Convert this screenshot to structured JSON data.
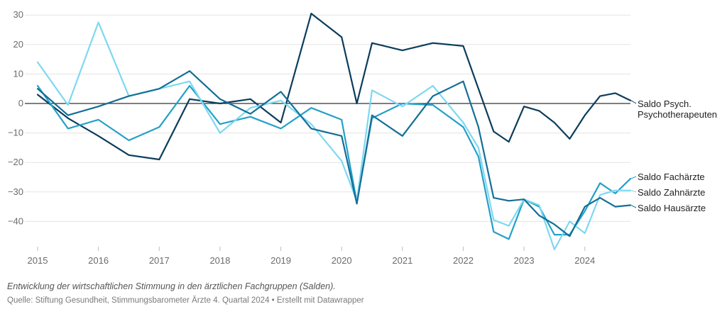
{
  "chart_data": {
    "type": "line",
    "x_ticks": [
      "2015",
      "2016",
      "2017",
      "2018",
      "2019",
      "2020",
      "2021",
      "2022",
      "2023",
      "2024"
    ],
    "x_range": [
      2015.0,
      2024.75
    ],
    "y_ticks": [
      30,
      20,
      10,
      0,
      -10,
      -20,
      -30,
      -40
    ],
    "y_tick_labels": [
      "30",
      "20",
      "10",
      "0",
      "−10",
      "−20",
      "−30",
      "−40"
    ],
    "ylim": [
      -50,
      30
    ],
    "grid": true,
    "series": [
      {
        "name": "Saldo Psych. Psychotherapeuten",
        "label_lines": [
          "Saldo Psych.",
          "Psychotherapeuten"
        ],
        "color": "#0b3d5c",
        "points": [
          [
            2015.0,
            3
          ],
          [
            2015.5,
            -5
          ],
          [
            2016.0,
            -11
          ],
          [
            2016.5,
            -17.5
          ],
          [
            2017.0,
            -19
          ],
          [
            2017.5,
            1.5
          ],
          [
            2018.0,
            0
          ],
          [
            2018.5,
            1.5
          ],
          [
            2019.0,
            -6.5
          ],
          [
            2019.5,
            30.5
          ],
          [
            2020.0,
            22.5
          ],
          [
            2020.25,
            0
          ],
          [
            2020.5,
            20.5
          ],
          [
            2021.0,
            18
          ],
          [
            2021.5,
            20.5
          ],
          [
            2022.0,
            19.5
          ],
          [
            2022.25,
            5
          ],
          [
            2022.5,
            -9.5
          ],
          [
            2022.75,
            -13
          ],
          [
            2023.0,
            -1
          ],
          [
            2023.25,
            -2.5
          ],
          [
            2023.5,
            -6.5
          ],
          [
            2023.75,
            -12
          ],
          [
            2024.0,
            -4
          ],
          [
            2024.25,
            2.5
          ],
          [
            2024.5,
            3.5
          ],
          [
            2024.75,
            1
          ]
        ]
      },
      {
        "name": "Saldo Fachärzte",
        "label_lines": [
          "Saldo Fachärzte"
        ],
        "color": "#24a0c8",
        "points": [
          [
            2015.0,
            6
          ],
          [
            2015.5,
            -8.5
          ],
          [
            2016.0,
            -5.5
          ],
          [
            2016.5,
            -12.5
          ],
          [
            2017.0,
            -8
          ],
          [
            2017.5,
            6
          ],
          [
            2018.0,
            -7
          ],
          [
            2018.5,
            -4.5
          ],
          [
            2019.0,
            -8.5
          ],
          [
            2019.5,
            -1.5
          ],
          [
            2020.0,
            -5.5
          ],
          [
            2020.25,
            -33.5
          ],
          [
            2020.5,
            -5
          ],
          [
            2021.0,
            0
          ],
          [
            2021.5,
            -0.5
          ],
          [
            2022.0,
            -8
          ],
          [
            2022.25,
            -18
          ],
          [
            2022.5,
            -43.5
          ],
          [
            2022.75,
            -46
          ],
          [
            2023.0,
            -32.5
          ],
          [
            2023.25,
            -35
          ],
          [
            2023.5,
            -44.5
          ],
          [
            2023.75,
            -44.5
          ],
          [
            2024.0,
            -36.5
          ],
          [
            2024.25,
            -27
          ],
          [
            2024.5,
            -30.5
          ],
          [
            2024.75,
            -25.5
          ]
        ]
      },
      {
        "name": "Saldo Zahnärzte",
        "label_lines": [
          "Saldo Zahnärzte"
        ],
        "color": "#7dd8f2",
        "points": [
          [
            2015.0,
            14
          ],
          [
            2015.5,
            -0.5
          ],
          [
            2016.0,
            27.5
          ],
          [
            2016.5,
            2.5
          ],
          [
            2017.0,
            5
          ],
          [
            2017.5,
            7.5
          ],
          [
            2018.0,
            -10
          ],
          [
            2018.5,
            -1.5
          ],
          [
            2019.0,
            1
          ],
          [
            2019.5,
            -7
          ],
          [
            2020.0,
            -19.5
          ],
          [
            2020.25,
            -33
          ],
          [
            2020.5,
            4.5
          ],
          [
            2021.0,
            -1
          ],
          [
            2021.5,
            6
          ],
          [
            2022.0,
            -6.5
          ],
          [
            2022.25,
            -15
          ],
          [
            2022.5,
            -39.5
          ],
          [
            2022.75,
            -41.5
          ],
          [
            2023.0,
            -32.5
          ],
          [
            2023.25,
            -34.5
          ],
          [
            2023.5,
            -49.5
          ],
          [
            2023.75,
            -40
          ],
          [
            2024.0,
            -44
          ],
          [
            2024.25,
            -31
          ],
          [
            2024.5,
            -29.5
          ],
          [
            2024.75,
            -29.5
          ]
        ]
      },
      {
        "name": "Saldo Hausärzte",
        "label_lines": [
          "Saldo Hausärzte"
        ],
        "color": "#136e96",
        "points": [
          [
            2015.0,
            5
          ],
          [
            2015.5,
            -4
          ],
          [
            2016.0,
            -1
          ],
          [
            2016.5,
            2.5
          ],
          [
            2017.0,
            5
          ],
          [
            2017.5,
            11
          ],
          [
            2018.0,
            1.5
          ],
          [
            2018.5,
            -3.5
          ],
          [
            2019.0,
            4
          ],
          [
            2019.5,
            -8.5
          ],
          [
            2020.0,
            -11
          ],
          [
            2020.25,
            -34
          ],
          [
            2020.5,
            -4
          ],
          [
            2021.0,
            -11
          ],
          [
            2021.5,
            2.5
          ],
          [
            2022.0,
            7.5
          ],
          [
            2022.25,
            -8
          ],
          [
            2022.5,
            -32
          ],
          [
            2022.75,
            -33
          ],
          [
            2023.0,
            -32.5
          ],
          [
            2023.25,
            -38
          ],
          [
            2023.5,
            -41
          ],
          [
            2023.75,
            -45
          ],
          [
            2024.0,
            -35
          ],
          [
            2024.25,
            -32
          ],
          [
            2024.5,
            -35
          ],
          [
            2024.75,
            -34.5
          ]
        ]
      }
    ]
  },
  "caption": "Entwicklung der wirtschaftlichen Stimmung in den ärztlichen Fachgruppen (Salden).",
  "source": "Quelle: Stiftung Gesundheit, Stimmungsbarometer Ärzte 4. Quartal 2024 • Erstellt mit Datawrapper"
}
